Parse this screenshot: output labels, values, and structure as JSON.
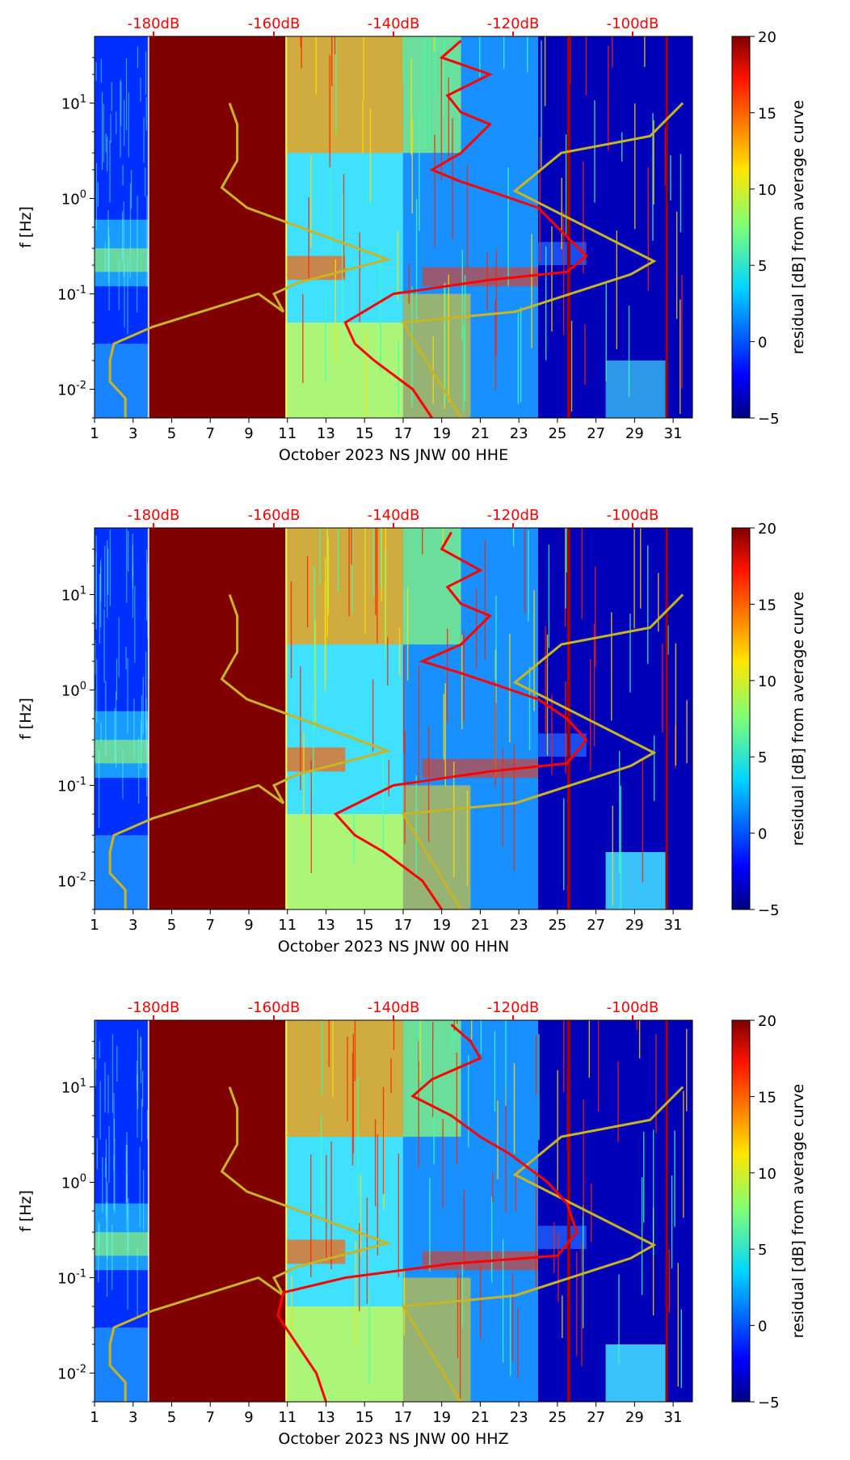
{
  "colors": {
    "jet_dark_red": "#800000",
    "jet_dark_blue": "#00007f",
    "psd_curve": "#ff0000",
    "noise_model": "#c8b424",
    "top_axis_text": "#ff0000"
  },
  "chart_data": [
    {
      "type": "heatmap",
      "title": "",
      "xlabel": "October 2023 NS JNW 00 HHE",
      "ylabel": "f [Hz]",
      "x_ticks": [
        "1",
        "3",
        "5",
        "7",
        "9",
        "11",
        "13",
        "15",
        "17",
        "19",
        "21",
        "23",
        "25",
        "27",
        "29",
        "31"
      ],
      "y_ticks": [
        "10^-2",
        "10^-1",
        "10^0",
        "10^1"
      ],
      "top_ticks": [
        "-180dB",
        "-160dB",
        "-140dB",
        "-120dB",
        "-100dB"
      ],
      "xlim": [
        1,
        32
      ],
      "ylim_hz": [
        0.005,
        50
      ],
      "y_scale": "log",
      "colorbar": {
        "label": "residual [dB] from average curve",
        "range": [
          -5,
          20
        ],
        "ticks": [
          "20",
          "15",
          "10",
          "5",
          "0",
          "−5"
        ]
      },
      "psd_curve_red": {
        "day": [
          20.0,
          19.0,
          21.5,
          19.3,
          20.0,
          21.5,
          20.0,
          18.5,
          20.0,
          22.0,
          24.0,
          25.0,
          26.5,
          25.5,
          21.5,
          16.5,
          14.0,
          14.5,
          15.5,
          17.5,
          18.5
        ],
        "freq_hz": [
          45,
          30,
          20,
          12,
          8,
          6,
          3,
          2,
          1.5,
          1.1,
          0.8,
          0.5,
          0.25,
          0.17,
          0.14,
          0.1,
          0.05,
          0.03,
          0.02,
          0.01,
          0.005
        ]
      },
      "noise_model_low": {
        "day": [
          8.0,
          8.4,
          8.4,
          7.6,
          8.9,
          16.2,
          11.5,
          10.3,
          10.8,
          9.5,
          4.0,
          2.0,
          1.8,
          1.8,
          2.6,
          2.6
        ],
        "freq_hz": [
          10,
          6,
          2.5,
          1.3,
          0.8,
          0.23,
          0.13,
          0.1,
          0.065,
          0.1,
          0.045,
          0.03,
          0.02,
          0.012,
          0.008,
          0.005
        ]
      },
      "noise_model_high": {
        "day": [
          31.5,
          29.8,
          25.2,
          22.8,
          30.0,
          28.8,
          22.8,
          17.0,
          20.0
        ],
        "freq_hz": [
          10,
          4.5,
          3,
          1.2,
          0.22,
          0.16,
          0.065,
          0.05,
          0.005
        ]
      }
    },
    {
      "type": "heatmap",
      "title": "",
      "xlabel": "October 2023 NS JNW 00 HHN",
      "ylabel": "f [Hz]",
      "x_ticks": [
        "1",
        "3",
        "5",
        "7",
        "9",
        "11",
        "13",
        "15",
        "17",
        "19",
        "21",
        "23",
        "25",
        "27",
        "29",
        "31"
      ],
      "y_ticks": [
        "10^-2",
        "10^-1",
        "10^0",
        "10^1"
      ],
      "top_ticks": [
        "-180dB",
        "-160dB",
        "-140dB",
        "-120dB",
        "-100dB"
      ],
      "xlim": [
        1,
        32
      ],
      "ylim_hz": [
        0.005,
        50
      ],
      "y_scale": "log",
      "colorbar": {
        "label": "residual [dB] from average curve",
        "range": [
          -5,
          20
        ],
        "ticks": [
          "20",
          "15",
          "10",
          "5",
          "0",
          "−5"
        ]
      },
      "psd_curve_red": {
        "day": [
          19.5,
          19.0,
          21.0,
          19.3,
          20.0,
          21.5,
          20.0,
          18.0,
          20.0,
          22.0,
          24.0,
          25.5,
          26.5,
          25.5,
          21.5,
          16.5,
          13.5,
          14.5,
          16.0,
          18.0,
          19.0
        ],
        "freq_hz": [
          45,
          30,
          18,
          12,
          8,
          6,
          3,
          2,
          1.5,
          1.1,
          0.8,
          0.5,
          0.3,
          0.17,
          0.14,
          0.1,
          0.05,
          0.03,
          0.02,
          0.01,
          0.005
        ]
      },
      "noise_model_low": {
        "day": [
          8.0,
          8.4,
          8.4,
          7.6,
          8.9,
          16.2,
          11.5,
          10.3,
          10.8,
          9.5,
          4.0,
          2.0,
          1.8,
          1.8,
          2.6,
          2.6
        ],
        "freq_hz": [
          10,
          6,
          2.5,
          1.3,
          0.8,
          0.23,
          0.13,
          0.1,
          0.065,
          0.1,
          0.045,
          0.03,
          0.02,
          0.012,
          0.008,
          0.005
        ]
      },
      "noise_model_high": {
        "day": [
          31.5,
          29.8,
          25.2,
          22.8,
          30.0,
          28.8,
          22.8,
          17.0,
          20.0
        ],
        "freq_hz": [
          10,
          4.5,
          3,
          1.2,
          0.22,
          0.16,
          0.065,
          0.05,
          0.005
        ]
      }
    },
    {
      "type": "heatmap",
      "title": "",
      "xlabel": "October 2023 NS JNW 00 HHZ",
      "ylabel": "f [Hz]",
      "x_ticks": [
        "1",
        "3",
        "5",
        "7",
        "9",
        "11",
        "13",
        "15",
        "17",
        "19",
        "21",
        "23",
        "25",
        "27",
        "29",
        "31"
      ],
      "y_ticks": [
        "10^-2",
        "10^-1",
        "10^0",
        "10^1"
      ],
      "top_ticks": [
        "-180dB",
        "-160dB",
        "-140dB",
        "-120dB",
        "-100dB"
      ],
      "xlim": [
        1,
        32
      ],
      "ylim_hz": [
        0.005,
        50
      ],
      "y_scale": "log",
      "colorbar": {
        "label": "residual [dB] from average curve",
        "range": [
          -5,
          20
        ],
        "ticks": [
          "20",
          "15",
          "10",
          "5",
          "0",
          "−5"
        ]
      },
      "psd_curve_red": {
        "day": [
          19.5,
          20.5,
          21.0,
          18.5,
          17.5,
          19.5,
          21.0,
          22.5,
          24.5,
          25.5,
          26.0,
          25.0,
          19.5,
          14.0,
          10.8,
          10.5,
          11.5,
          12.5,
          13.0
        ],
        "freq_hz": [
          45,
          30,
          20,
          12,
          8,
          5,
          3,
          2,
          1,
          0.6,
          0.3,
          0.17,
          0.14,
          0.1,
          0.07,
          0.04,
          0.02,
          0.01,
          0.005
        ]
      },
      "noise_model_low": {
        "day": [
          8.0,
          8.4,
          8.4,
          7.6,
          8.9,
          16.2,
          11.5,
          10.3,
          10.8,
          9.5,
          4.0,
          2.0,
          1.8,
          1.8,
          2.6,
          2.6
        ],
        "freq_hz": [
          10,
          6,
          2.5,
          1.3,
          0.8,
          0.23,
          0.13,
          0.1,
          0.065,
          0.1,
          0.045,
          0.03,
          0.02,
          0.012,
          0.008,
          0.005
        ]
      },
      "noise_model_high": {
        "day": [
          31.5,
          29.8,
          25.2,
          22.8,
          30.0,
          28.8,
          22.8,
          17.0,
          20.0
        ],
        "freq_hz": [
          10,
          4.5,
          3,
          1.2,
          0.22,
          0.16,
          0.065,
          0.05,
          0.005
        ]
      }
    }
  ]
}
